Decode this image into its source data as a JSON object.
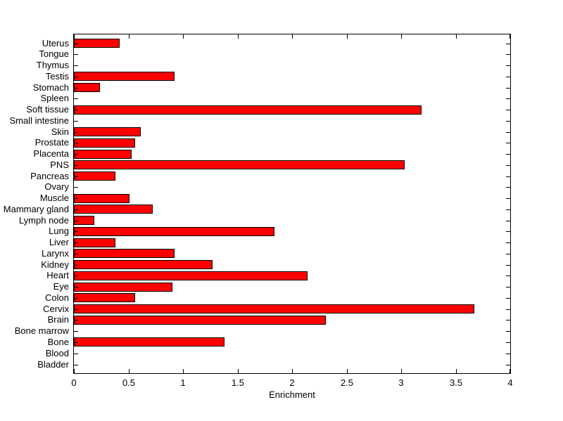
{
  "figure": {
    "background_color": "#ffffff",
    "axis_color": "#000000",
    "text_color": "#000000"
  },
  "chart_data": {
    "type": "bar",
    "orientation": "horizontal",
    "title": "",
    "xlabel": "Enrichment",
    "ylabel": "",
    "xlim": [
      0,
      4
    ],
    "x_ticks": [
      0,
      0.5,
      1,
      1.5,
      2,
      2.5,
      3,
      3.5,
      4
    ],
    "x_tick_labels": [
      "0",
      "0.5",
      "1",
      "1.5",
      "2",
      "2.5",
      "3",
      "3.5",
      "4"
    ],
    "grid": false,
    "legend": null,
    "bar_color": "#ff0000",
    "bar_edge_color": "#000000",
    "categories": [
      "Uterus",
      "Tongue",
      "Thymus",
      "Testis",
      "Stomach",
      "Spleen",
      "Soft tissue",
      "Small intestine",
      "Skin",
      "Prostate",
      "Placenta",
      "PNS",
      "Pancreas",
      "Ovary",
      "Muscle",
      "Mammary gland",
      "Lymph node",
      "Lung",
      "Liver",
      "Larynx",
      "Kidney",
      "Heart",
      "Eye",
      "Colon",
      "Cervix",
      "Brain",
      "Bone marrow",
      "Bone",
      "Blood",
      "Bladder"
    ],
    "values": [
      0.42,
      0,
      0,
      0.92,
      0.24,
      0,
      3.19,
      0,
      0.61,
      0.56,
      0.53,
      3.03,
      0.38,
      0,
      0.51,
      0.72,
      0.19,
      1.84,
      0.38,
      0.92,
      1.27,
      2.14,
      0.9,
      0.56,
      3.67,
      2.31,
      0,
      1.38,
      0,
      0
    ]
  }
}
